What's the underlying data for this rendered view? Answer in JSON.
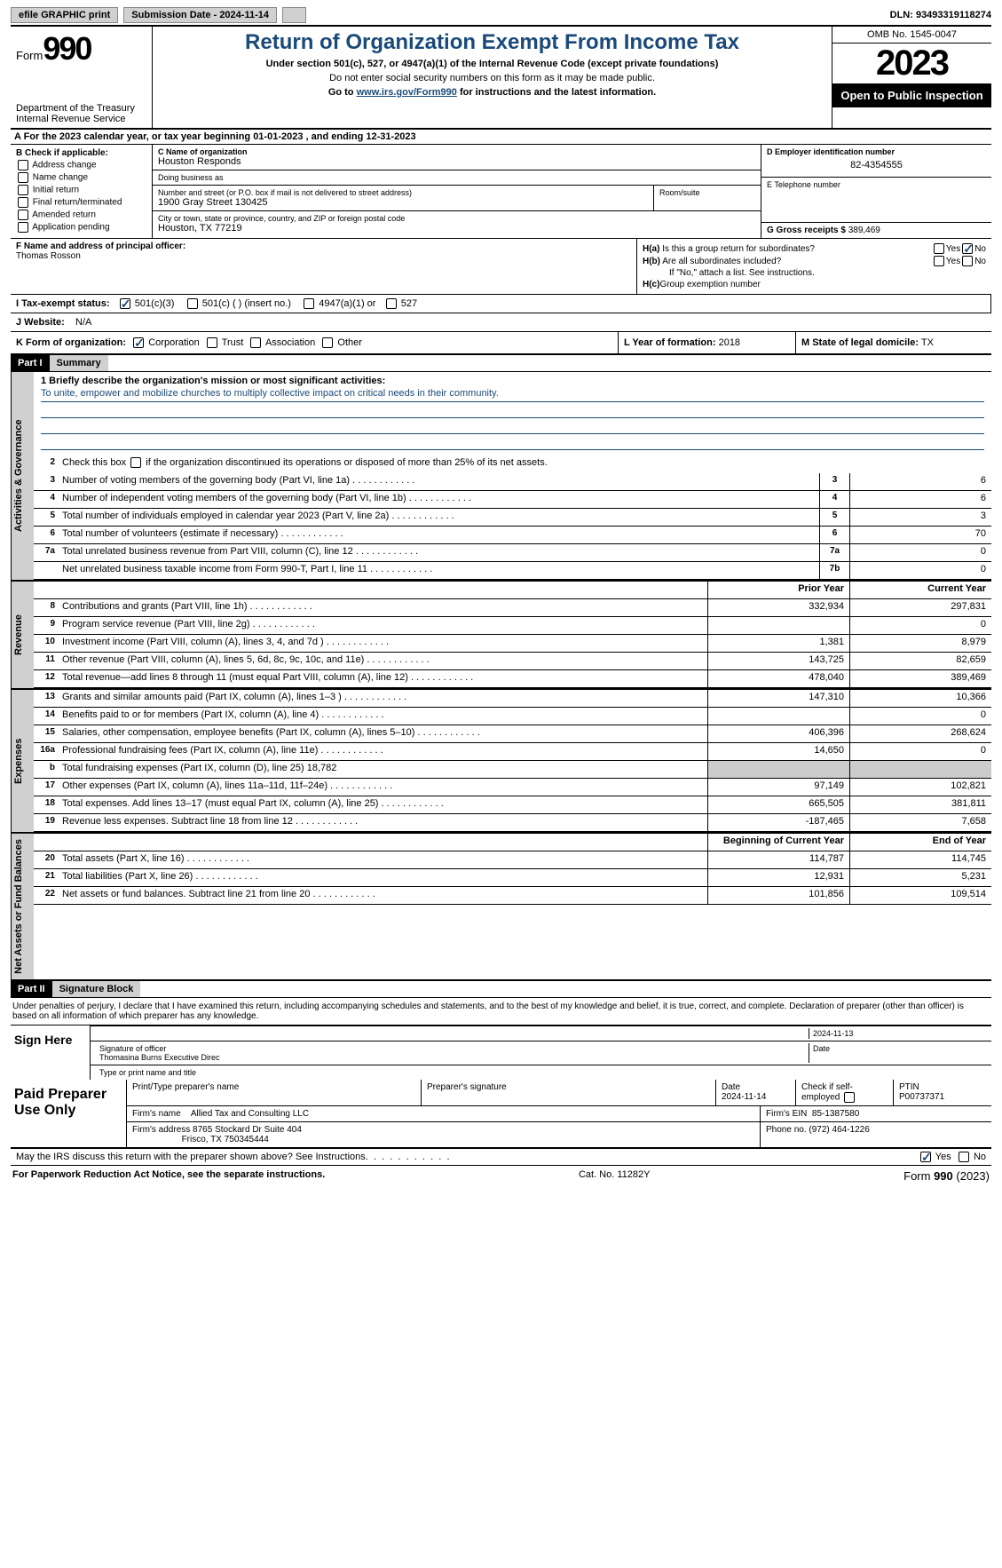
{
  "colors": {
    "accent": "#1a4a7a",
    "shade": "#d0d0d0",
    "black": "#000000"
  },
  "topbar": {
    "efile": "efile GRAPHIC print",
    "submission": "Submission Date - 2024-11-14",
    "dln": "DLN: 93493319118274"
  },
  "header": {
    "form_prefix": "Form",
    "form_no": "990",
    "dept": "Department of the Treasury",
    "irs": "Internal Revenue Service",
    "title": "Return of Organization Exempt From Income Tax",
    "subtitle": "Under section 501(c), 527, or 4947(a)(1) of the Internal Revenue Code (except private foundations)",
    "note": "Do not enter social security numbers on this form as it may be made public.",
    "goto_pre": "Go to ",
    "goto_link": "www.irs.gov/Form990",
    "goto_post": " for instructions and the latest information.",
    "omb": "OMB No. 1545-0047",
    "year": "2023",
    "open": "Open to Public Inspection"
  },
  "line_a": "A  For the 2023 calendar year, or tax year beginning 01-01-2023    , and ending 12-31-2023",
  "box_b": {
    "title": "B Check if applicable:",
    "opts": [
      "Address change",
      "Name change",
      "Initial return",
      "Final return/terminated",
      "Amended return",
      "Application pending"
    ]
  },
  "box_c": {
    "name_lbl": "C Name of organization",
    "name": "Houston Responds",
    "dba_lbl": "Doing business as",
    "dba": "",
    "street_lbl": "Number and street (or P.O. box if mail is not delivered to street address)",
    "street": "1900 Gray Street 130425",
    "room_lbl": "Room/suite",
    "city_lbl": "City or town, state or province, country, and ZIP or foreign postal code",
    "city": "Houston, TX  77219"
  },
  "box_d": {
    "lbl": "D Employer identification number",
    "val": "82-4354555"
  },
  "box_e": {
    "lbl": "E Telephone number",
    "val": ""
  },
  "box_g": {
    "lbl": "G Gross receipts $",
    "val": "389,469"
  },
  "box_f": {
    "lbl": "F  Name and address of principal officer:",
    "val": "Thomas Rosson"
  },
  "box_h": {
    "a": "H(a)  Is this a group return for subordinates?",
    "b": "H(b)  Are all subordinates included?",
    "note": "If \"No,\" attach a list. See instructions.",
    "c": "H(c)  Group exemption number",
    "yes": "Yes",
    "no": "No",
    "ha_yes": false,
    "ha_no": true,
    "hb_yes": false,
    "hb_no": false
  },
  "box_i": {
    "lbl": "I   Tax-exempt status:",
    "o1": "501(c)(3)",
    "o2": "501(c) (  ) (insert no.)",
    "o3": "4947(a)(1) or",
    "o4": "527",
    "checked_501c3": true
  },
  "box_j": {
    "lbl": "J   Website:",
    "val": "N/A"
  },
  "box_k": {
    "lbl": "K Form of organization:",
    "o1": "Corporation",
    "o2": "Trust",
    "o3": "Association",
    "o4": "Other",
    "corp_checked": true
  },
  "box_l": {
    "lbl": "L Year of formation:",
    "val": "2018"
  },
  "box_m": {
    "lbl": "M State of legal domicile:",
    "val": "TX"
  },
  "part1": {
    "hdr": "Part I",
    "title": "Summary"
  },
  "summary": {
    "mission_lbl": "1   Briefly describe the organization's mission or most significant activities:",
    "mission": "To unite, empower and mobilize churches to multiply collective impact on critical needs in their community.",
    "line2": "2   Check this box      if the organization discontinued its operations or disposed of more than 25% of its net assets.",
    "governance_rows": [
      {
        "n": "3",
        "d": "Number of voting members of the governing body (Part VI, line 1a)",
        "ln": "3",
        "v": "6"
      },
      {
        "n": "4",
        "d": "Number of independent voting members of the governing body (Part VI, line 1b)",
        "ln": "4",
        "v": "6"
      },
      {
        "n": "5",
        "d": "Total number of individuals employed in calendar year 2023 (Part V, line 2a)",
        "ln": "5",
        "v": "3"
      },
      {
        "n": "6",
        "d": "Total number of volunteers (estimate if necessary)",
        "ln": "6",
        "v": "70"
      },
      {
        "n": "7a",
        "d": "Total unrelated business revenue from Part VIII, column (C), line 12",
        "ln": "7a",
        "v": "0"
      },
      {
        "n": "",
        "d": "Net unrelated business taxable income from Form 990-T, Part I, line 11",
        "ln": "7b",
        "v": "0"
      }
    ],
    "col_prior": "Prior Year",
    "col_current": "Current Year",
    "revenue_rows": [
      {
        "n": "8",
        "d": "Contributions and grants (Part VIII, line 1h)",
        "p": "332,934",
        "c": "297,831"
      },
      {
        "n": "9",
        "d": "Program service revenue (Part VIII, line 2g)",
        "p": "",
        "c": "0"
      },
      {
        "n": "10",
        "d": "Investment income (Part VIII, column (A), lines 3, 4, and 7d )",
        "p": "1,381",
        "c": "8,979"
      },
      {
        "n": "11",
        "d": "Other revenue (Part VIII, column (A), lines 5, 6d, 8c, 9c, 10c, and 11e)",
        "p": "143,725",
        "c": "82,659"
      },
      {
        "n": "12",
        "d": "Total revenue—add lines 8 through 11 (must equal Part VIII, column (A), line 12)",
        "p": "478,040",
        "c": "389,469"
      }
    ],
    "expense_rows": [
      {
        "n": "13",
        "d": "Grants and similar amounts paid (Part IX, column (A), lines 1–3 )",
        "p": "147,310",
        "c": "10,366"
      },
      {
        "n": "14",
        "d": "Benefits paid to or for members (Part IX, column (A), line 4)",
        "p": "",
        "c": "0"
      },
      {
        "n": "15",
        "d": "Salaries, other compensation, employee benefits (Part IX, column (A), lines 5–10)",
        "p": "406,396",
        "c": "268,624"
      },
      {
        "n": "16a",
        "d": "Professional fundraising fees (Part IX, column (A), line 11e)",
        "p": "14,650",
        "c": "0"
      },
      {
        "n": "b",
        "d": "Total fundraising expenses (Part IX, column (D), line 25) 18,782",
        "p": "shade",
        "c": "shade"
      },
      {
        "n": "17",
        "d": "Other expenses (Part IX, column (A), lines 11a–11d, 11f–24e)",
        "p": "97,149",
        "c": "102,821"
      },
      {
        "n": "18",
        "d": "Total expenses. Add lines 13–17 (must equal Part IX, column (A), line 25)",
        "p": "665,505",
        "c": "381,811"
      },
      {
        "n": "19",
        "d": "Revenue less expenses. Subtract line 18 from line 12",
        "p": "-187,465",
        "c": "7,658"
      }
    ],
    "col_begin": "Beginning of Current Year",
    "col_end": "End of Year",
    "asset_rows": [
      {
        "n": "20",
        "d": "Total assets (Part X, line 16)",
        "p": "114,787",
        "c": "114,745"
      },
      {
        "n": "21",
        "d": "Total liabilities (Part X, line 26)",
        "p": "12,931",
        "c": "5,231"
      },
      {
        "n": "22",
        "d": "Net assets or fund balances. Subtract line 21 from line 20",
        "p": "101,856",
        "c": "109,514"
      }
    ],
    "vtabs": {
      "gov": "Activities & Governance",
      "rev": "Revenue",
      "exp": "Expenses",
      "net": "Net Assets or Fund Balances"
    }
  },
  "part2": {
    "hdr": "Part II",
    "title": "Signature Block"
  },
  "sig": {
    "text": "Under penalties of perjury, I declare that I have examined this return, including accompanying schedules and statements, and to the best of my knowledge and belief, it is true, correct, and complete. Declaration of preparer (other than officer) is based on all information of which preparer has any knowledge.",
    "sign_here": "Sign Here",
    "date": "2024-11-13",
    "sig_officer": "Signature of officer",
    "date_lbl": "Date",
    "officer": "Thomasina Burns Executive Direc",
    "type_lbl": "Type or print name and title"
  },
  "prep": {
    "title": "Paid Preparer Use Only",
    "h_name": "Print/Type preparer's name",
    "h_sig": "Preparer's signature",
    "h_date": "Date",
    "date": "2024-11-14",
    "h_check": "Check        if self-employed",
    "h_ptin": "PTIN",
    "ptin": "P00737371",
    "firm_lbl": "Firm's name",
    "firm": "Allied Tax and Consulting LLC",
    "ein_lbl": "Firm's EIN",
    "ein": "85-1387580",
    "addr_lbl": "Firm's address",
    "addr1": "8765 Stockard Dr Suite 404",
    "addr2": "Frisco, TX  750345444",
    "phone_lbl": "Phone no.",
    "phone": "(972) 464-1226"
  },
  "discuss": {
    "q": "May the IRS discuss this return with the preparer shown above? See Instructions.",
    "yes": "Yes",
    "no": "No",
    "yes_checked": true
  },
  "footer": {
    "left": "For Paperwork Reduction Act Notice, see the separate instructions.",
    "mid": "Cat. No. 11282Y",
    "right_pre": "Form ",
    "right_form": "990",
    "right_post": " (2023)"
  }
}
